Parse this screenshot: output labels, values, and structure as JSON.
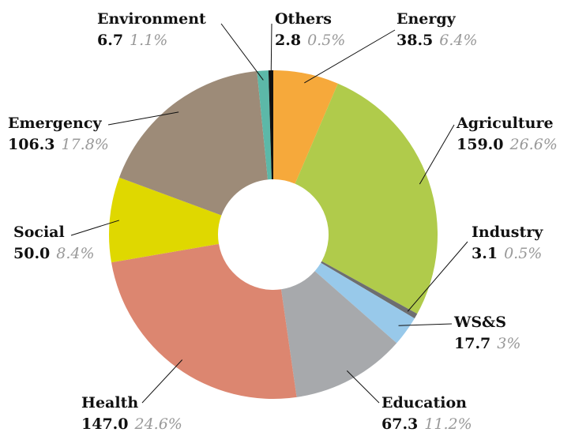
{
  "chart_data": {
    "type": "donut",
    "categories": [
      "Energy",
      "Agriculture",
      "Industry",
      "WS&S",
      "Education",
      "Health",
      "Social",
      "Emergency",
      "Environment",
      "Others"
    ],
    "values": [
      38.5,
      159.0,
      3.1,
      17.7,
      67.3,
      147.0,
      50.0,
      106.3,
      6.7,
      2.8
    ],
    "value_labels": [
      "38.5",
      "159.0",
      "3.1",
      "17.7",
      "67.3",
      "147.0",
      "50.0",
      "106.3",
      "6.7",
      "2.8"
    ],
    "percents": [
      6.4,
      26.6,
      0.5,
      3,
      11.2,
      24.6,
      8.4,
      17.8,
      1.1,
      0.5
    ],
    "percent_labels": [
      "6.4%",
      "26.6%",
      "0.5%",
      "3%",
      "11.2%",
      "24.6%",
      "8.4%",
      "17.8%",
      "1.1%",
      "0.5%"
    ],
    "colors": [
      "#f6a93b",
      "#b0cb4b",
      "#6d6e70",
      "#98c9ea",
      "#a7a9ac",
      "#dc8670",
      "#dfd800",
      "#9d8b78",
      "#5cb8a8",
      "#111111"
    ]
  }
}
